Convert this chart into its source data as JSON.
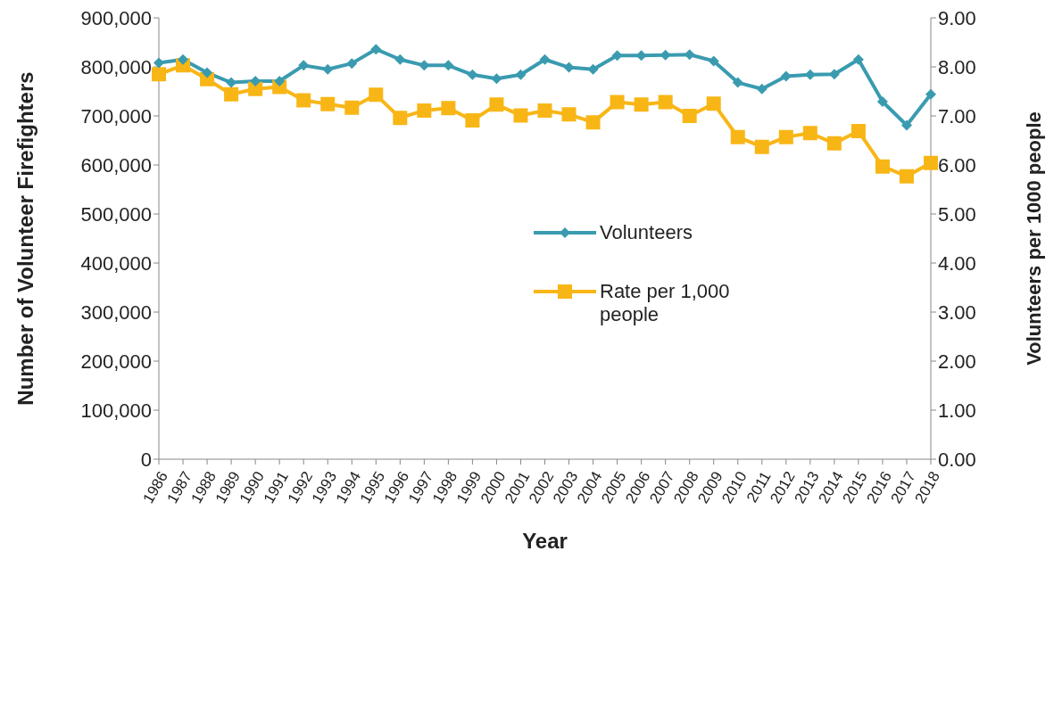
{
  "chart_data": {
    "type": "line",
    "xlabel": "Year",
    "ylabel": "Number of Volunteer Firefighters",
    "y2label": "Volunteers per 1000 people",
    "categories": [
      "1986",
      "1987",
      "1988",
      "1989",
      "1990",
      "1991",
      "1992",
      "1993",
      "1994",
      "1995",
      "1996",
      "1997",
      "1998",
      "1999",
      "2000",
      "2001",
      "2002",
      "2003",
      "2004",
      "2005",
      "2006",
      "2007",
      "2008",
      "2009",
      "2010",
      "2011",
      "2012",
      "2013",
      "2014",
      "2015",
      "2016",
      "2017",
      "2018"
    ],
    "series": [
      {
        "name": "Volunteers",
        "color": "#3a9bb0",
        "marker": "diamond",
        "values": [
          808000,
          815000,
          788000,
          768000,
          771000,
          771000,
          803000,
          795000,
          807000,
          836000,
          815000,
          803000,
          803000,
          784000,
          776000,
          784000,
          815000,
          799000,
          795000,
          823000,
          823000,
          824000,
          825000,
          812000,
          768000,
          755000,
          781000,
          784000,
          785000,
          815000,
          729000,
          681000,
          744000
        ]
      },
      {
        "name": "Rate per 1,000 people",
        "color": "#f8b616",
        "marker": "square",
        "axis": "y2",
        "values": [
          7.85,
          8.03,
          7.75,
          7.44,
          7.55,
          7.59,
          7.32,
          7.24,
          7.17,
          7.43,
          6.96,
          7.11,
          7.16,
          6.91,
          7.23,
          7.01,
          7.11,
          7.03,
          6.87,
          7.28,
          7.23,
          7.28,
          7.0,
          7.25,
          6.57,
          6.37,
          6.57,
          6.65,
          6.44,
          6.69,
          5.97,
          5.77,
          6.04
        ]
      }
    ],
    "ylim": [
      0,
      900000
    ],
    "yticks": [
      {
        "value": 0,
        "label": "0"
      },
      {
        "value": 100000,
        "label": "100,000"
      },
      {
        "value": 200000,
        "label": "200,000"
      },
      {
        "value": 300000,
        "label": "300,000"
      },
      {
        "value": 400000,
        "label": "400,000"
      },
      {
        "value": 500000,
        "label": "500,000"
      },
      {
        "value": 600000,
        "label": "600,000"
      },
      {
        "value": 700000,
        "label": "700,000"
      },
      {
        "value": 800000,
        "label": "800,000"
      },
      {
        "value": 900000,
        "label": "900,000"
      }
    ],
    "y2lim": [
      0,
      9
    ],
    "y2ticks": [
      {
        "value": 0,
        "label": "0.00"
      },
      {
        "value": 1,
        "label": "1.00"
      },
      {
        "value": 2,
        "label": "2.00"
      },
      {
        "value": 3,
        "label": "3.00"
      },
      {
        "value": 4,
        "label": "4.00"
      },
      {
        "value": 5,
        "label": "5.00"
      },
      {
        "value": 6,
        "label": "6.00"
      },
      {
        "value": 7,
        "label": "7.00"
      },
      {
        "value": 8,
        "label": "8.00"
      },
      {
        "value": 9,
        "label": "9.00"
      }
    ],
    "grid": false,
    "legend": "center",
    "line_style": "solid"
  }
}
